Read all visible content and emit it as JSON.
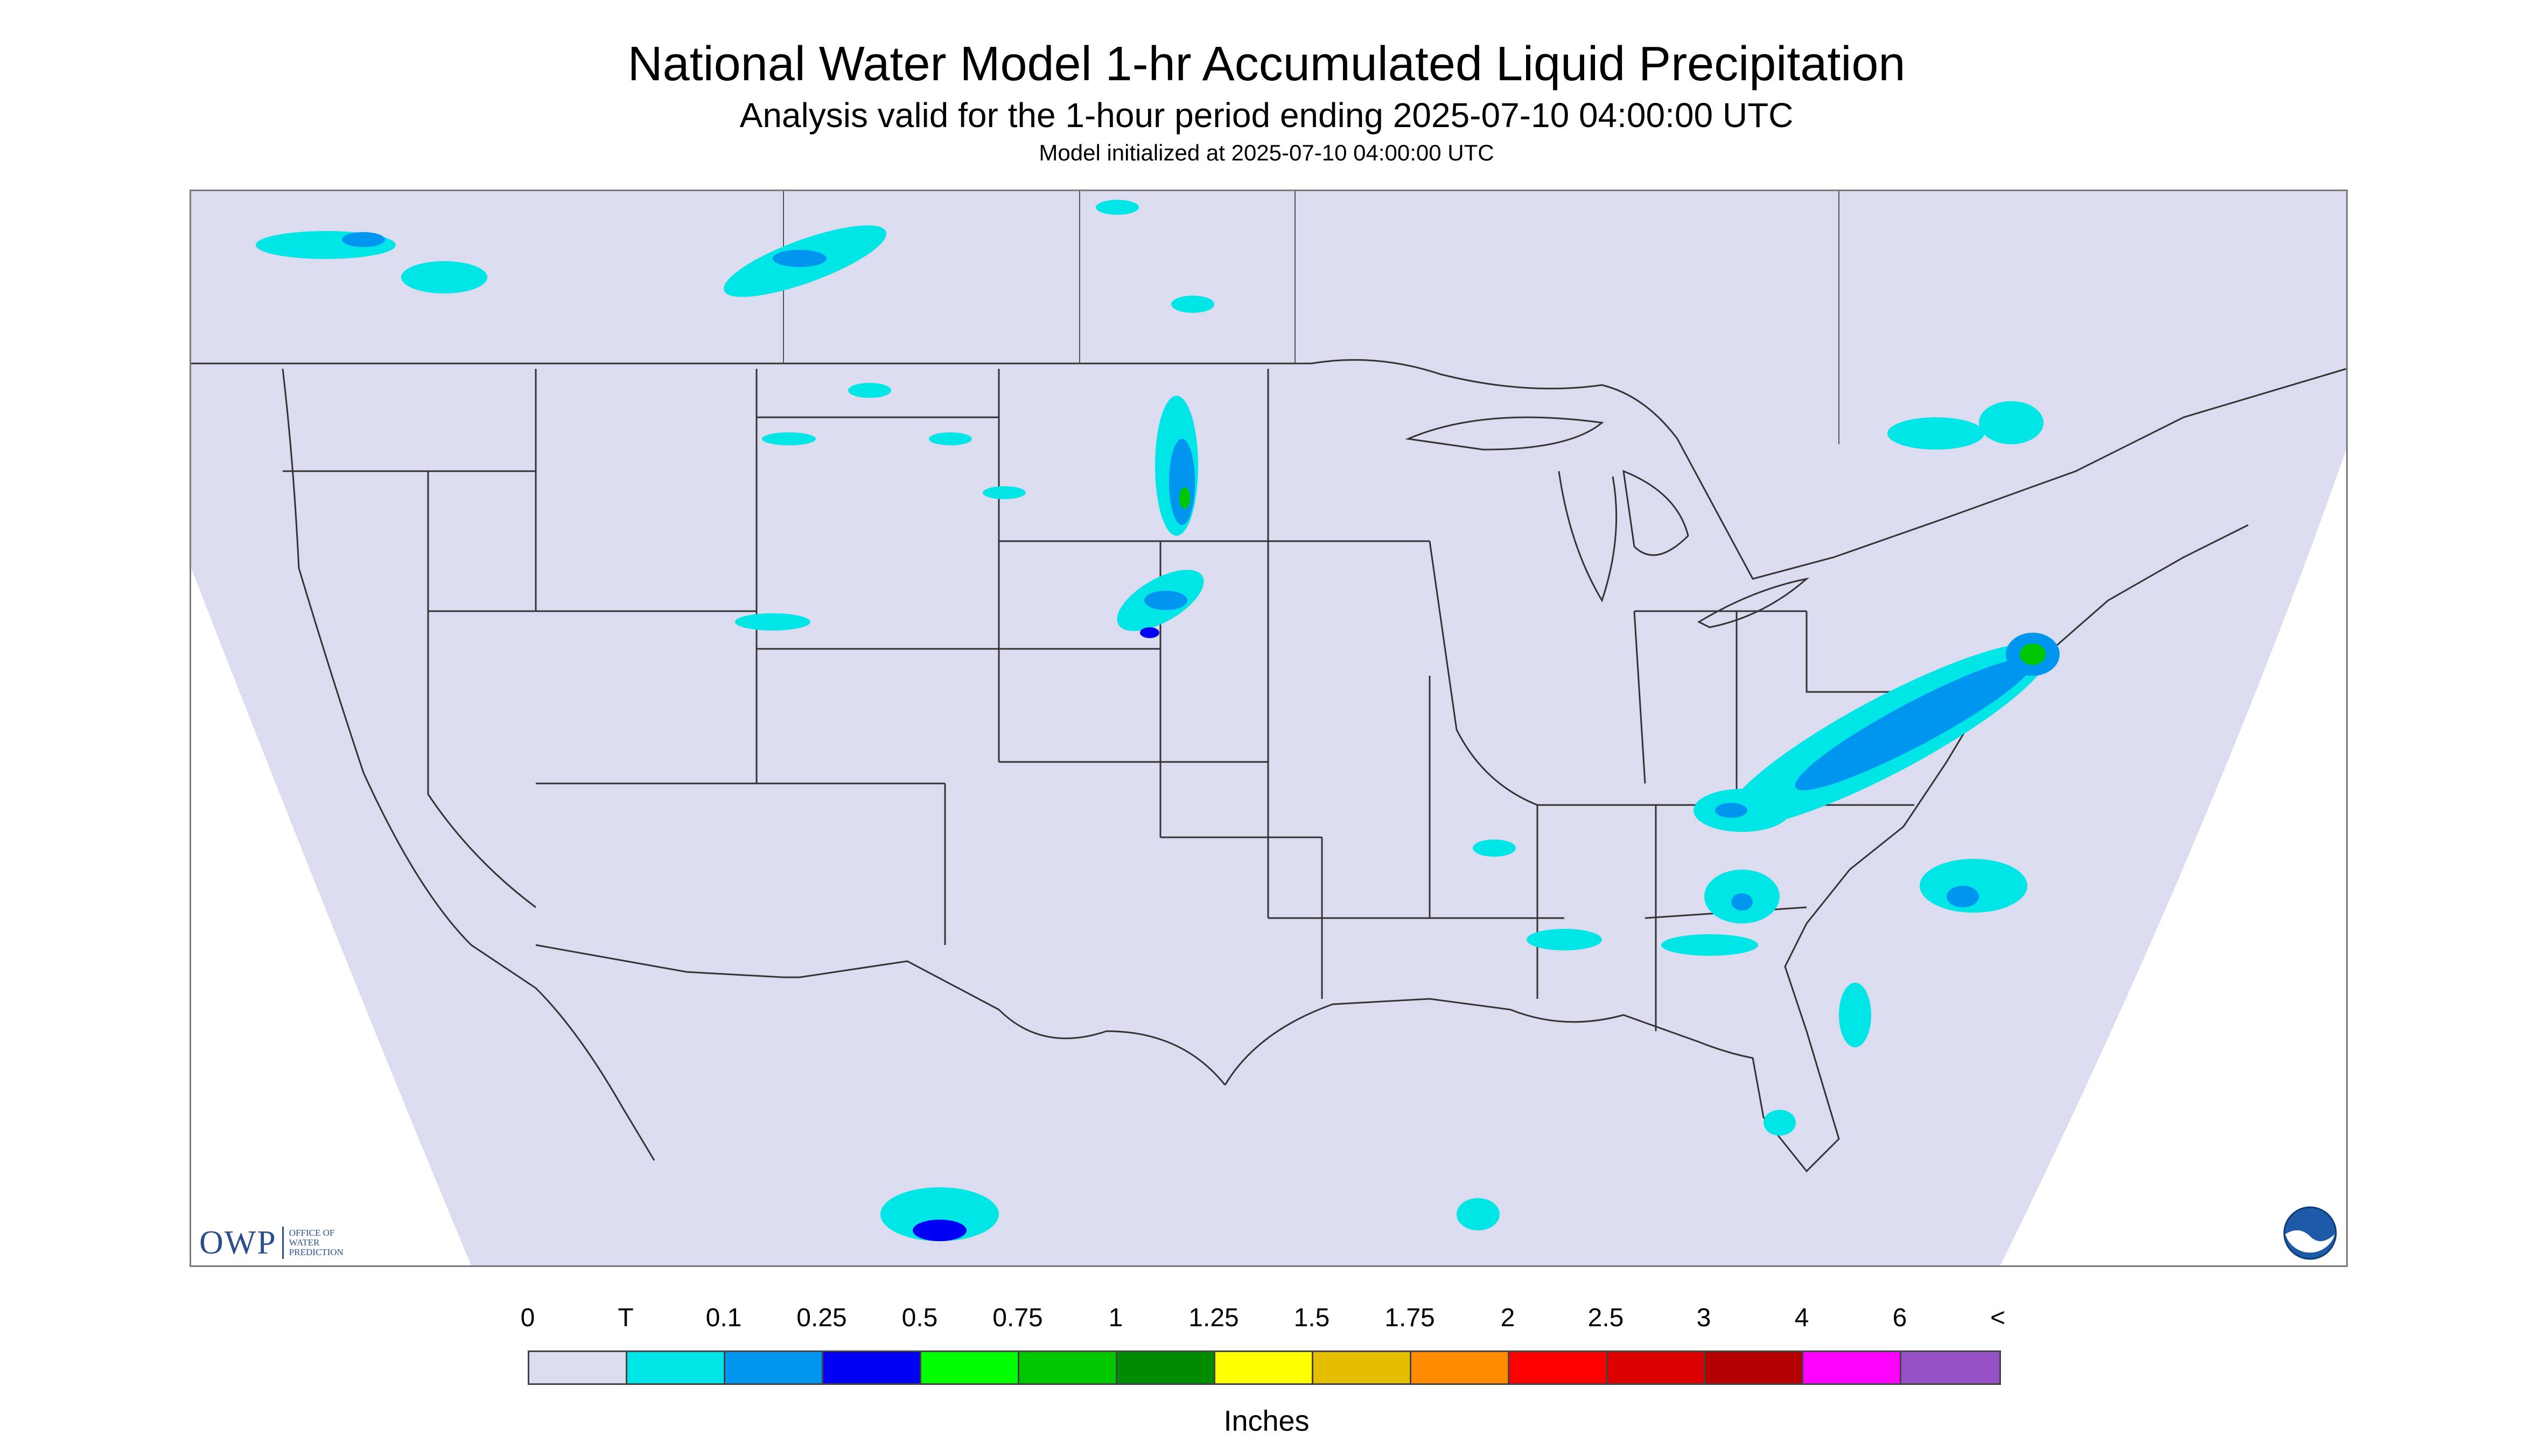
{
  "header": {
    "title": "National Water Model 1-hr Accumulated Liquid Precipitation",
    "subtitle": "Analysis valid for the 1-hour period ending 2025-07-10 04:00:00 UTC",
    "init": "Model initialized at 2025-07-10 04:00:00 UTC"
  },
  "logo": {
    "owp_text": "OWP",
    "owp_line1": "OFFICE OF",
    "owp_line2": "WATER",
    "owp_line3": "PREDICTION",
    "noaa_text": "NOAA"
  },
  "legend": {
    "units": "Inches",
    "labels": [
      "0",
      "T",
      "0.1",
      "0.25",
      "0.5",
      "0.75",
      "1",
      "1.25",
      "1.5",
      "1.75",
      "2",
      "2.5",
      "3",
      "4",
      "6",
      "<"
    ],
    "colors": [
      "#dcdcf0",
      "#00e5e5",
      "#0096f0",
      "#0000f5",
      "#00ff00",
      "#00c800",
      "#008c00",
      "#ffff00",
      "#e6be00",
      "#ff8c00",
      "#ff0000",
      "#dc0000",
      "#b40000",
      "#ff00ff",
      "#9650c8"
    ]
  },
  "map": {
    "background_color": "#dcdcf0",
    "boundary_color": "#333333"
  }
}
